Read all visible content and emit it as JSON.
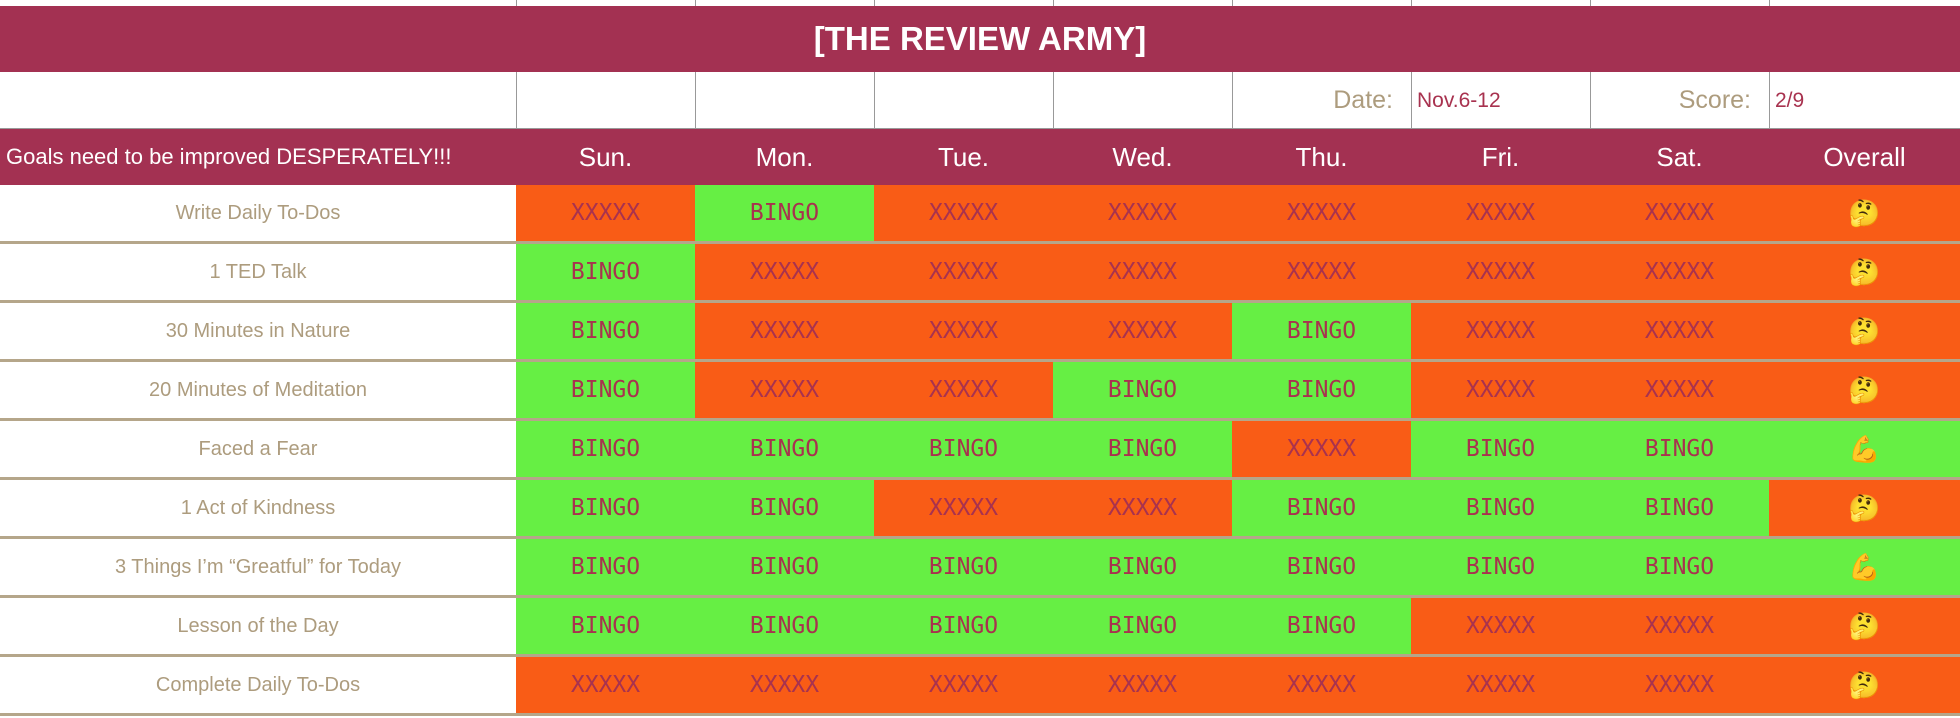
{
  "header": {
    "title": "[THE REVIEW ARMY]",
    "date_label": "Date:",
    "date": "Nov.6-12",
    "score_label": "Score:",
    "score": "2/9",
    "goal_label": "Goals need to be improved DESPERATELY!!!",
    "days": [
      "Sun.",
      "Mon.",
      "Tue.",
      "Wed.",
      "Thu.",
      "Fri.",
      "Sat."
    ],
    "overall_label": "Overall",
    "band_color": "#a33152"
  },
  "table": {
    "rows": [
      {
        "goal": "Write Daily To-Dos",
        "cells": [
          {
            "text": "XXXXX",
            "color": "#f95c16"
          },
          {
            "text": "BINGO",
            "color": "#66ef44"
          },
          {
            "text": "XXXXX",
            "color": "#f95c16"
          },
          {
            "text": "XXXXX",
            "color": "#f95c16"
          },
          {
            "text": "XXXXX",
            "color": "#f95c16"
          },
          {
            "text": "XXXXX",
            "color": "#f95c16"
          },
          {
            "text": "XXXXX",
            "color": "#f95c16"
          }
        ],
        "overall": {
          "text": "🤔",
          "color": "#f95c16"
        }
      },
      {
        "goal": "1 TED Talk",
        "cells": [
          {
            "text": "BINGO",
            "color": "#66ef44"
          },
          {
            "text": "XXXXX",
            "color": "#f95c16"
          },
          {
            "text": "XXXXX",
            "color": "#f95c16"
          },
          {
            "text": "XXXXX",
            "color": "#f95c16"
          },
          {
            "text": "XXXXX",
            "color": "#f95c16"
          },
          {
            "text": "XXXXX",
            "color": "#f95c16"
          },
          {
            "text": "XXXXX",
            "color": "#f95c16"
          }
        ],
        "overall": {
          "text": "🤔",
          "color": "#f95c16"
        }
      },
      {
        "goal": "30 Minutes in Nature",
        "cells": [
          {
            "text": "BINGO",
            "color": "#66ef44"
          },
          {
            "text": "XXXXX",
            "color": "#f95c16"
          },
          {
            "text": "XXXXX",
            "color": "#f95c16"
          },
          {
            "text": "XXXXX",
            "color": "#f95c16"
          },
          {
            "text": "BINGO",
            "color": "#66ef44"
          },
          {
            "text": "XXXXX",
            "color": "#f95c16"
          },
          {
            "text": "XXXXX",
            "color": "#f95c16"
          }
        ],
        "overall": {
          "text": "🤔",
          "color": "#f95c16"
        }
      },
      {
        "goal": "20 Minutes of Meditation",
        "cells": [
          {
            "text": "BINGO",
            "color": "#66ef44"
          },
          {
            "text": "XXXXX",
            "color": "#f95c16"
          },
          {
            "text": "XXXXX",
            "color": "#f95c16"
          },
          {
            "text": "BINGO",
            "color": "#66ef44"
          },
          {
            "text": "BINGO",
            "color": "#66ef44"
          },
          {
            "text": "XXXXX",
            "color": "#f95c16"
          },
          {
            "text": "XXXXX",
            "color": "#f95c16"
          }
        ],
        "overall": {
          "text": "🤔",
          "color": "#f95c16"
        }
      },
      {
        "goal": "Faced a Fear",
        "cells": [
          {
            "text": "BINGO",
            "color": "#66ef44"
          },
          {
            "text": "BINGO",
            "color": "#66ef44"
          },
          {
            "text": "BINGO",
            "color": "#66ef44"
          },
          {
            "text": "BINGO",
            "color": "#66ef44"
          },
          {
            "text": "XXXXX",
            "color": "#f95c16"
          },
          {
            "text": "BINGO",
            "color": "#66ef44"
          },
          {
            "text": "BINGO",
            "color": "#66ef44"
          }
        ],
        "overall": {
          "text": "💪",
          "color": "#66ef44"
        }
      },
      {
        "goal": "1 Act of Kindness",
        "cells": [
          {
            "text": "BINGO",
            "color": "#66ef44"
          },
          {
            "text": "BINGO",
            "color": "#66ef44"
          },
          {
            "text": "XXXXX",
            "color": "#f95c16"
          },
          {
            "text": "XXXXX",
            "color": "#f95c16"
          },
          {
            "text": "BINGO",
            "color": "#66ef44"
          },
          {
            "text": "BINGO",
            "color": "#66ef44"
          },
          {
            "text": "BINGO",
            "color": "#66ef44"
          }
        ],
        "overall": {
          "text": "🤔",
          "color": "#f95c16"
        }
      },
      {
        "goal": "3 Things I’m “Greatful” for Today",
        "cells": [
          {
            "text": "BINGO",
            "color": "#66ef44"
          },
          {
            "text": "BINGO",
            "color": "#66ef44"
          },
          {
            "text": "BINGO",
            "color": "#66ef44"
          },
          {
            "text": "BINGO",
            "color": "#66ef44"
          },
          {
            "text": "BINGO",
            "color": "#66ef44"
          },
          {
            "text": "BINGO",
            "color": "#66ef44"
          },
          {
            "text": "BINGO",
            "color": "#66ef44"
          }
        ],
        "overall": {
          "text": "💪",
          "color": "#66ef44"
        }
      },
      {
        "goal": "Lesson of the Day",
        "cells": [
          {
            "text": "BINGO",
            "color": "#66ef44"
          },
          {
            "text": "BINGO",
            "color": "#66ef44"
          },
          {
            "text": "BINGO",
            "color": "#66ef44"
          },
          {
            "text": "BINGO",
            "color": "#66ef44"
          },
          {
            "text": "BINGO",
            "color": "#66ef44"
          },
          {
            "text": "XXXXX",
            "color": "#f95c16"
          },
          {
            "text": "XXXXX",
            "color": "#f95c16"
          }
        ],
        "overall": {
          "text": "🤔",
          "color": "#f95c16"
        }
      },
      {
        "goal": "Complete Daily To-Dos",
        "cells": [
          {
            "text": "XXXXX",
            "color": "#f95c16"
          },
          {
            "text": "XXXXX",
            "color": "#f95c16"
          },
          {
            "text": "XXXXX",
            "color": "#f95c16"
          },
          {
            "text": "XXXXX",
            "color": "#f95c16"
          },
          {
            "text": "XXXXX",
            "color": "#f95c16"
          },
          {
            "text": "XXXXX",
            "color": "#f95c16"
          },
          {
            "text": "XXXXX",
            "color": "#f95c16"
          }
        ],
        "overall": {
          "text": "🤔",
          "color": "#f95c16"
        }
      }
    ]
  }
}
